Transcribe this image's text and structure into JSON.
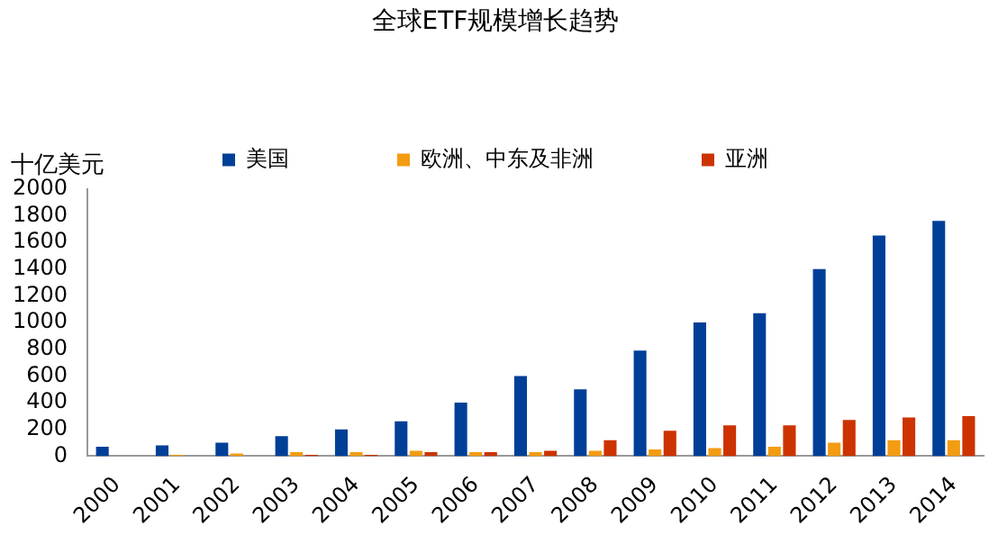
{
  "chart_data": {
    "type": "bar",
    "title": "全球ETF规模增长趋势",
    "ylabel": "十亿美元",
    "categories": [
      "2000",
      "2001",
      "2002",
      "2003",
      "2004",
      "2005",
      "2006",
      "2007",
      "2008",
      "2009",
      "2010",
      "2011",
      "2012",
      "2013",
      "2014"
    ],
    "series": [
      {
        "name": "美国",
        "color": "#003f98",
        "values": [
          70,
          80,
          100,
          150,
          200,
          260,
          400,
          600,
          500,
          790,
          1000,
          1070,
          1400,
          1650,
          1760
        ]
      },
      {
        "name": "欧洲、中东及非洲",
        "color": "#f39c12",
        "values": [
          0,
          10,
          20,
          30,
          30,
          40,
          30,
          30,
          40,
          50,
          60,
          70,
          100,
          120,
          120
        ]
      },
      {
        "name": "亚洲",
        "color": "#cc3300",
        "values": [
          0,
          0,
          0,
          10,
          10,
          30,
          30,
          40,
          120,
          190,
          230,
          230,
          270,
          290,
          300
        ]
      }
    ],
    "ylim": [
      0,
      2000
    ],
    "yticks": [
      0,
      200,
      400,
      600,
      800,
      1000,
      1200,
      1400,
      1600,
      1800,
      2000
    ],
    "grid": false,
    "legend": "top"
  }
}
